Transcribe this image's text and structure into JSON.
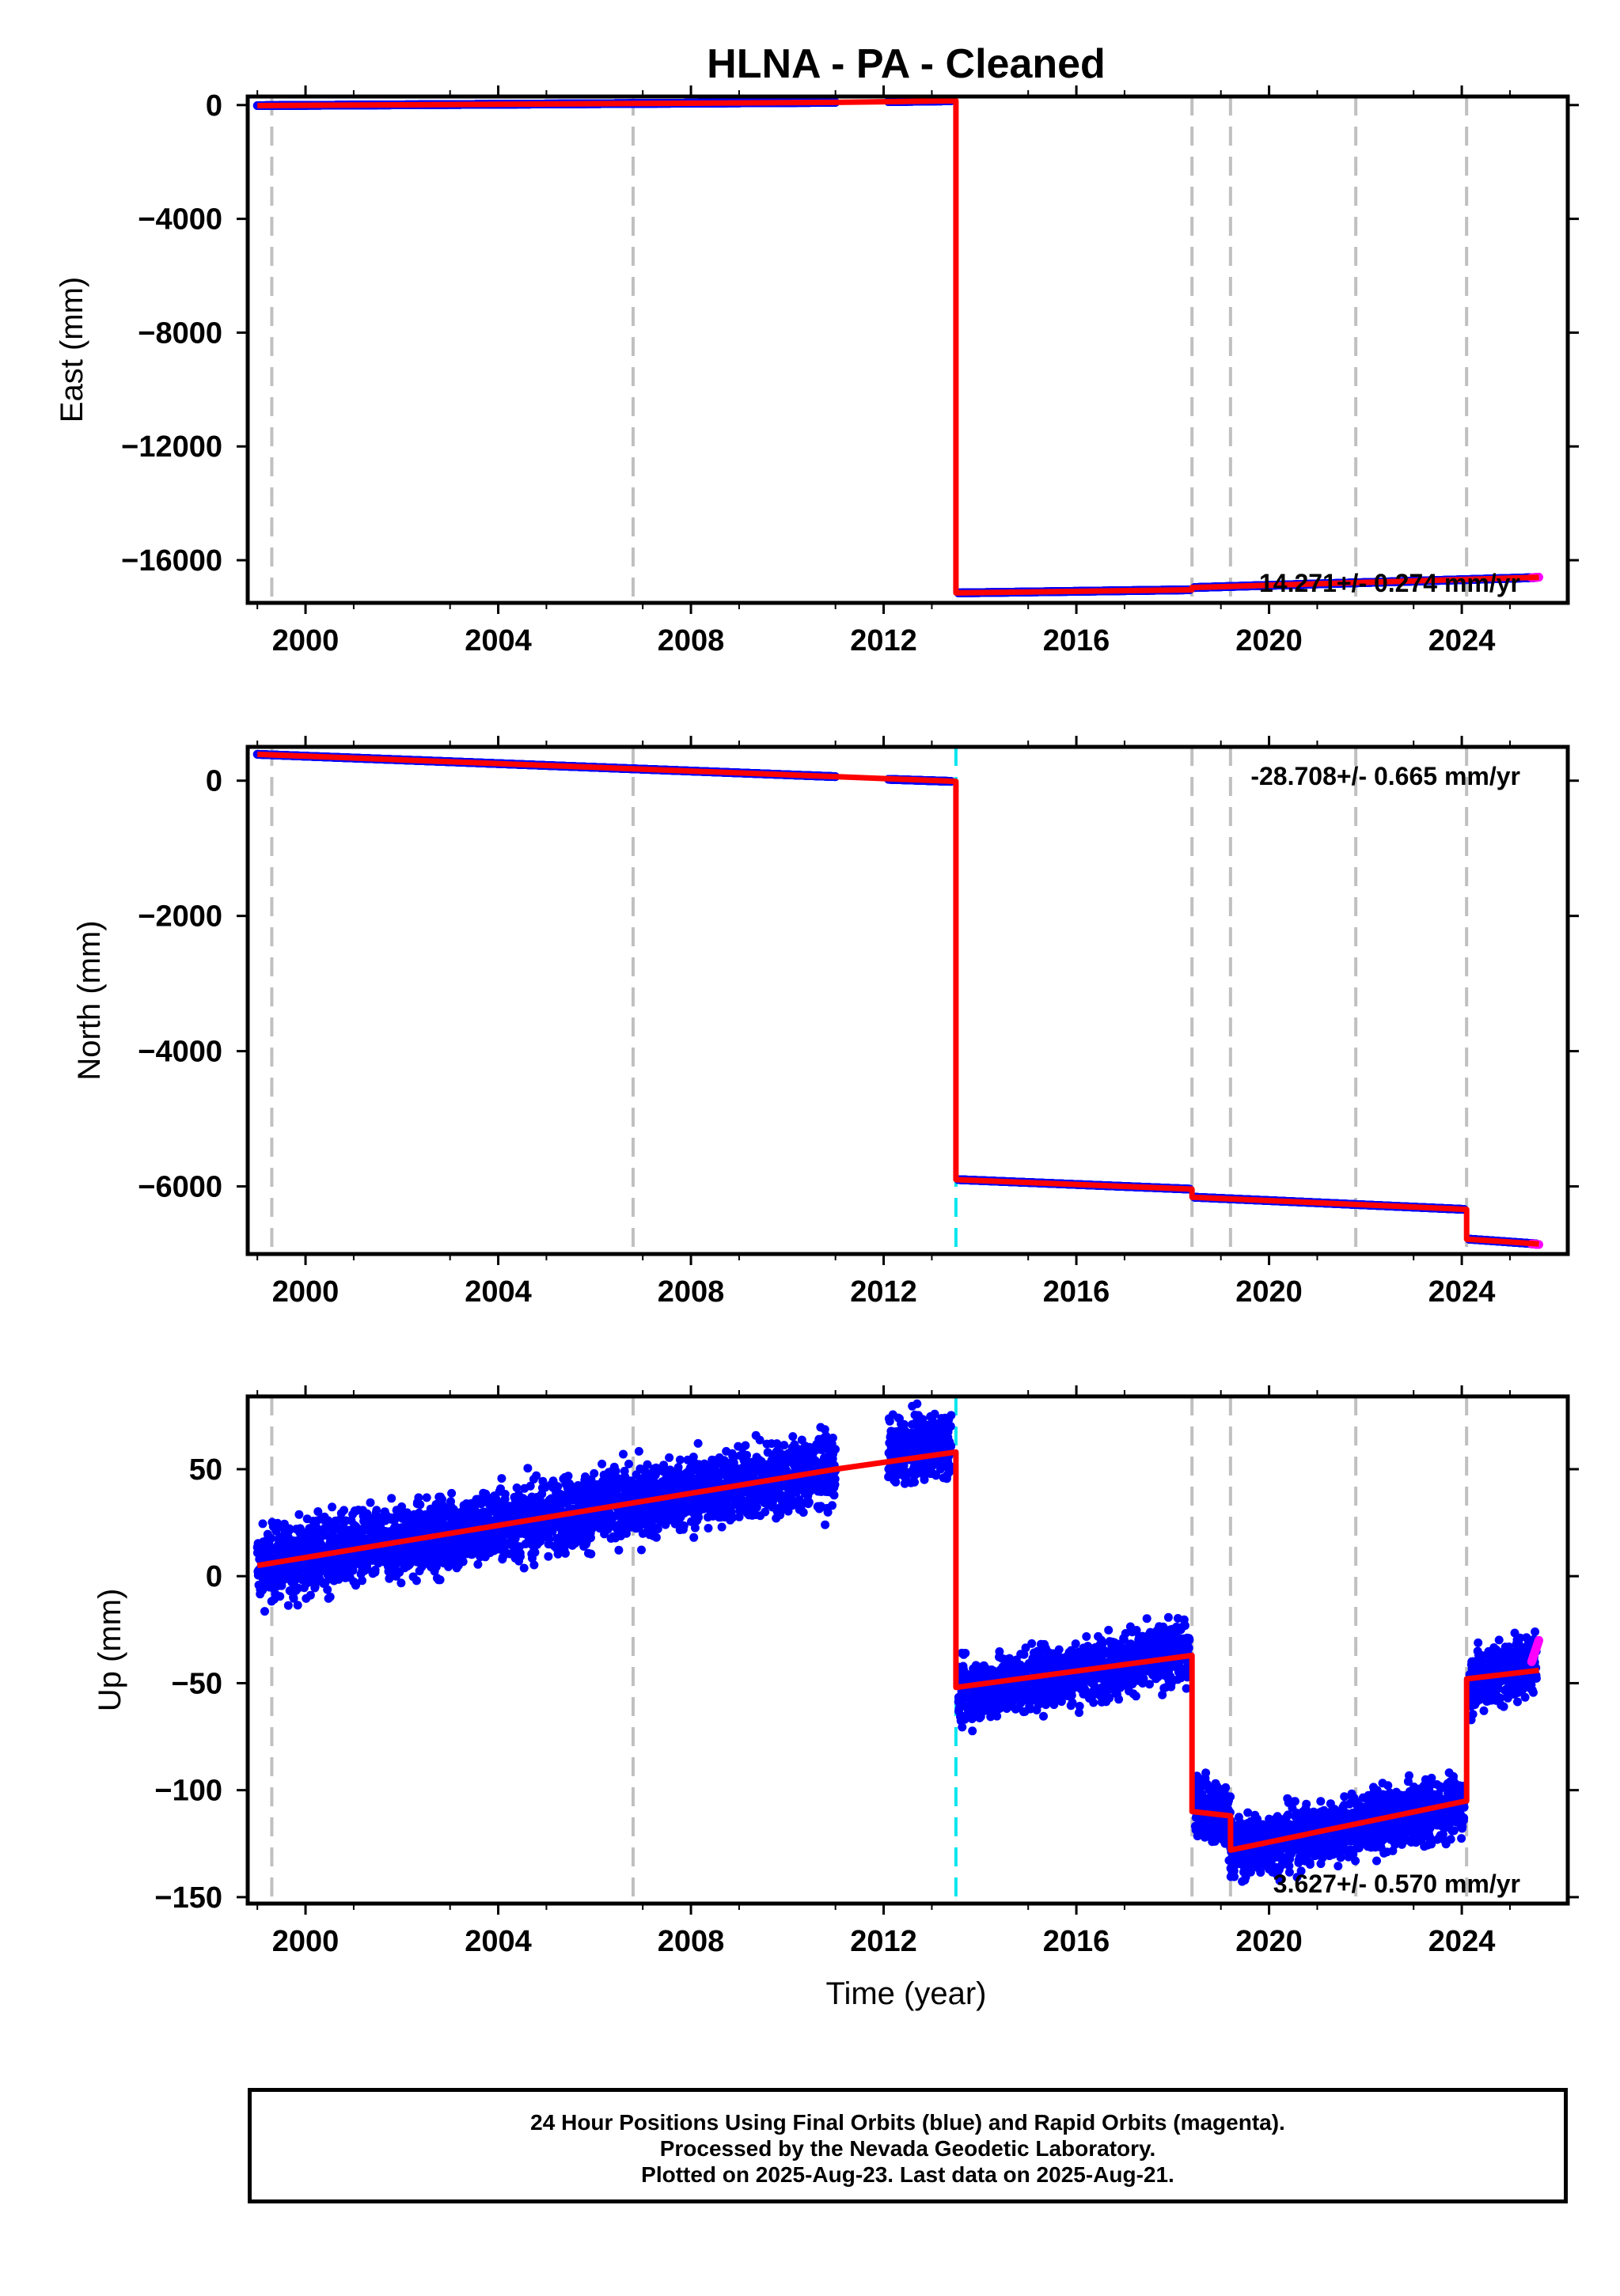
{
  "title": "HLNA  - PA - Cleaned",
  "xlabel": "Time (year)",
  "footer": [
    "24 Hour Positions Using Final Orbits (blue) and Rapid Orbits (magenta).",
    "Processed by the Nevada Geodetic Laboratory.",
    "Plotted on 2025-Aug-23. Last data on 2025-Aug-21."
  ],
  "colors": {
    "final": "#0000ff",
    "rapid": "#ff00ff",
    "model": "#ff0000",
    "equipment_line": "#c0c0c0",
    "earthquake_line": "#00e5ee"
  },
  "chart_data": [
    {
      "type": "scatter",
      "ylabel": "East (mm)",
      "rate_label": "14.271+/- 0.274 mm/yr",
      "rate_position": "bottom-right",
      "xlim": [
        1998.8,
        2026.2
      ],
      "ylim": [
        -17500,
        300
      ],
      "yticks": [
        0,
        -4000,
        -8000,
        -12000,
        -16000
      ],
      "xticks": [
        2000,
        2004,
        2008,
        2012,
        2016,
        2020,
        2024
      ],
      "equipment_changes": [
        1999.3,
        2006.8,
        2018.4,
        2019.2,
        2021.8,
        2024.1
      ],
      "earthquakes": [],
      "model": [
        [
          1999.0,
          -20
        ],
        [
          2011.0,
          95
        ],
        [
          2013.5,
          150
        ],
        [
          2013.5,
          -17150
        ],
        [
          2018.4,
          -17040
        ],
        [
          2018.4,
          -16960
        ],
        [
          2025.6,
          -16600
        ]
      ],
      "segments": [
        [
          1999.0,
          2011.0,
          -20,
          95,
          8,
          0
        ],
        [
          2012.1,
          2013.4,
          120,
          150,
          8,
          0
        ],
        [
          2013.55,
          2018.35,
          -17150,
          -17040,
          8,
          0
        ],
        [
          2018.45,
          2025.55,
          -16960,
          -16610,
          8,
          0
        ]
      ],
      "rapid": [
        [
          2025.45,
          2025.6,
          -16615,
          -16595,
          8,
          0
        ]
      ]
    },
    {
      "type": "scatter",
      "ylabel": "North (mm)",
      "rate_label": "-28.708+/- 0.665 mm/yr",
      "rate_position": "top-right",
      "xlim": [
        1998.8,
        2026.2
      ],
      "ylim": [
        -7000,
        500
      ],
      "yticks": [
        0,
        -2000,
        -4000,
        -6000
      ],
      "xticks": [
        2000,
        2004,
        2008,
        2012,
        2016,
        2020,
        2024
      ],
      "equipment_changes": [
        1999.3,
        2006.8,
        2018.4,
        2019.2,
        2021.8,
        2024.1
      ],
      "earthquakes": [
        2013.5
      ],
      "model": [
        [
          1999.0,
          390
        ],
        [
          2011.0,
          60
        ],
        [
          2013.5,
          -10
        ],
        [
          2013.5,
          -5900
        ],
        [
          2018.4,
          -6040
        ],
        [
          2018.4,
          -6160
        ],
        [
          2024.1,
          -6340
        ],
        [
          2024.1,
          -6780
        ],
        [
          2025.6,
          -6850
        ]
      ],
      "segments": [
        [
          1999.0,
          2011.0,
          390,
          60,
          15,
          0
        ],
        [
          2012.1,
          2013.4,
          20,
          -10,
          15,
          0
        ],
        [
          2013.55,
          2018.35,
          -5900,
          -6040,
          15,
          0
        ],
        [
          2018.45,
          2024.05,
          -6160,
          -6340,
          15,
          0
        ],
        [
          2024.15,
          2025.55,
          -6780,
          -6850,
          15,
          0
        ]
      ],
      "rapid": [
        [
          2025.45,
          2025.6,
          -6850,
          -6860,
          10,
          0
        ]
      ]
    },
    {
      "type": "scatter",
      "ylabel": "Up (mm)",
      "rate_label": "3.627+/- 0.570 mm/yr",
      "rate_position": "bottom-right",
      "xlim": [
        1998.8,
        2026.2
      ],
      "ylim": [
        -153,
        84
      ],
      "yticks": [
        50,
        0,
        -50,
        -100,
        -150
      ],
      "xticks": [
        2000,
        2004,
        2008,
        2012,
        2016,
        2020,
        2024
      ],
      "equipment_changes": [
        1999.3,
        2006.8,
        2018.4,
        2019.2,
        2021.8,
        2024.1
      ],
      "earthquakes": [
        2013.5
      ],
      "model": [
        [
          1999.0,
          5
        ],
        [
          2011.0,
          50
        ],
        [
          2013.5,
          58
        ],
        [
          2013.5,
          -52
        ],
        [
          2018.4,
          -37
        ],
        [
          2018.4,
          -110
        ],
        [
          2019.2,
          -112
        ],
        [
          2019.2,
          -128
        ],
        [
          2024.1,
          -105
        ],
        [
          2024.1,
          -48
        ],
        [
          2025.6,
          -44
        ]
      ],
      "segments": [
        [
          1999.0,
          2011.0,
          5,
          50,
          9,
          12
        ],
        [
          2012.1,
          2013.4,
          58,
          62,
          7,
          10
        ],
        [
          2013.55,
          2018.35,
          -55,
          -35,
          7,
          10
        ],
        [
          2018.45,
          2019.2,
          -105,
          -115,
          8,
          10
        ],
        [
          2019.2,
          2024.05,
          -128,
          -107,
          8,
          10
        ],
        [
          2024.15,
          2025.55,
          -50,
          -40,
          7,
          10
        ]
      ],
      "rapid": [
        [
          2025.45,
          2025.6,
          -40,
          -30,
          8,
          0
        ]
      ]
    }
  ]
}
